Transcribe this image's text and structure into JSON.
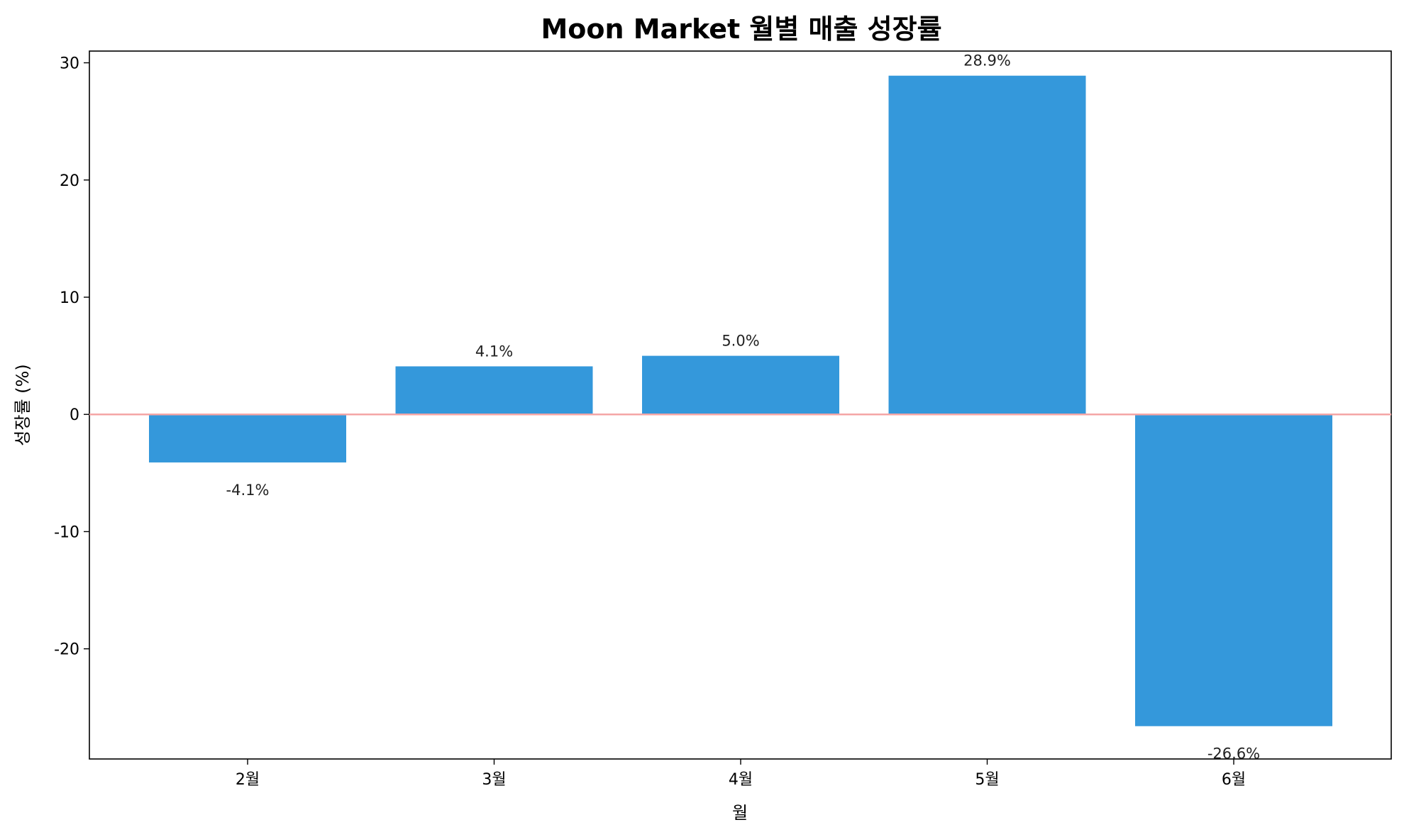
{
  "chart_data": {
    "type": "bar",
    "title": "Moon Market 월별 매출 성장률",
    "xlabel": "월",
    "ylabel": "성장률 (%)",
    "categories": [
      "2월",
      "3월",
      "4월",
      "5월",
      "6월"
    ],
    "values": [
      -4.1,
      4.1,
      5.0,
      28.9,
      -26.6
    ],
    "value_labels": [
      "-4.1%",
      "4.1%",
      "5.0%",
      "28.9%",
      "-26.6%"
    ],
    "ylim": [
      -29.4,
      31.0
    ],
    "yticks": [
      -20,
      -10,
      0,
      10,
      20,
      30
    ],
    "ytick_labels": [
      "-20",
      "-10",
      "0",
      "10",
      "20",
      "30"
    ],
    "grid": false,
    "reference_line": {
      "y": 0,
      "color": "#f4a6a6"
    },
    "colors": {
      "bar": "#3498db",
      "axes": "#000000"
    }
  }
}
